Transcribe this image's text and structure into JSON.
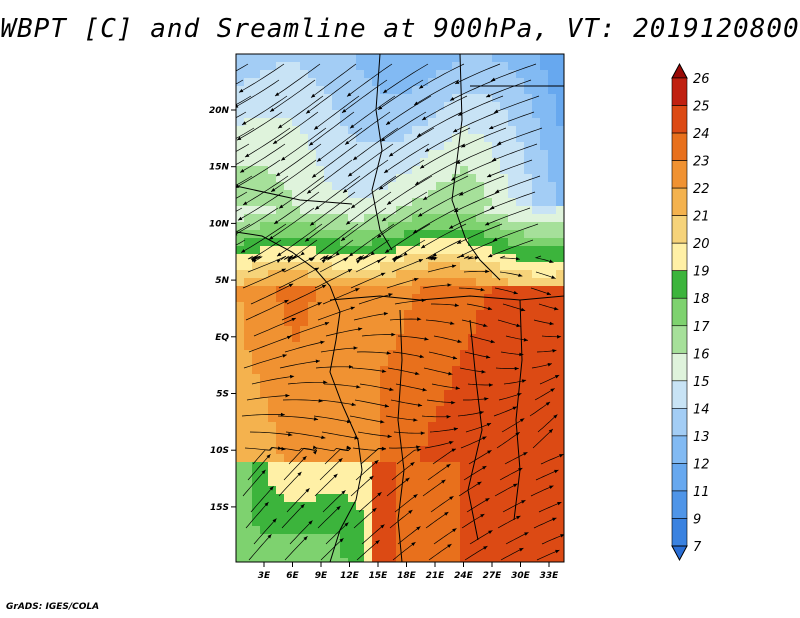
{
  "title": "WBPT [C] and Sreamline at 900hPa, VT: 2019120800",
  "credit": "GrADS: IGES/COLA",
  "map": {
    "lon_ticks": [
      "3E",
      "6E",
      "9E",
      "12E",
      "15E",
      "18E",
      "21E",
      "24E",
      "27E",
      "30E",
      "33E"
    ],
    "lat_ticks": [
      "20N",
      "15N",
      "10N",
      "5N",
      "EQ",
      "5S",
      "10S",
      "15S"
    ]
  },
  "colorbar": {
    "levels": [
      "7",
      "9",
      "11",
      "12",
      "13",
      "14",
      "15",
      "16",
      "17",
      "18",
      "19",
      "20",
      "21",
      "22",
      "23",
      "24",
      "25",
      "26"
    ],
    "colors": [
      "#2a6fd6",
      "#3a82e0",
      "#4f95e8",
      "#67a8ef",
      "#82baf3",
      "#a3cdf5",
      "#c8e3f5",
      "#dff3dc",
      "#a6e09a",
      "#7ed26f",
      "#3cb43c",
      "#fff0a6",
      "#f6d37a",
      "#f4b24e",
      "#f09232",
      "#e8701c",
      "#dc4a14",
      "#c02010",
      "#980a06"
    ]
  }
}
